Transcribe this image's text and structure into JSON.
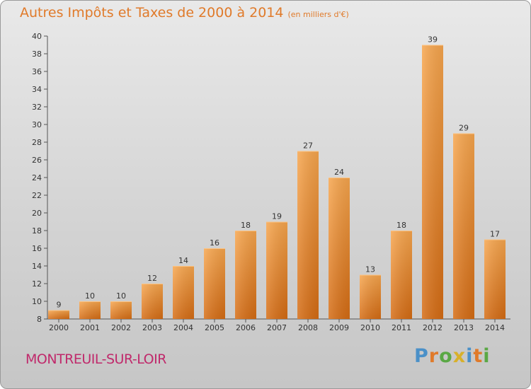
{
  "chart_data": {
    "type": "bar",
    "title": "Autres Impôts et Taxes de 2000 à 2014",
    "subtitle": "(en milliers d'€)",
    "categories": [
      "2000",
      "2001",
      "2002",
      "2003",
      "2004",
      "2005",
      "2006",
      "2007",
      "2008",
      "2009",
      "2010",
      "2011",
      "2012",
      "2013",
      "2014"
    ],
    "values": [
      9,
      10,
      10,
      12,
      14,
      16,
      18,
      19,
      27,
      24,
      13,
      18,
      39,
      29,
      17
    ],
    "ylim": [
      8,
      40
    ],
    "yticks": [
      8,
      10,
      12,
      14,
      16,
      18,
      20,
      22,
      24,
      26,
      28,
      30,
      32,
      34,
      36,
      38,
      40
    ],
    "grid": false,
    "bar_color": "#f08a2c"
  },
  "footer": {
    "commune": "MONTREUIL-SUR-LOIR",
    "brand": "Proxiti",
    "brand_letters": [
      {
        "ch": "P",
        "color": "#4a90c8"
      },
      {
        "ch": "r",
        "color": "#e07a2a"
      },
      {
        "ch": "o",
        "color": "#5aa845"
      },
      {
        "ch": "x",
        "color": "#d8b02a"
      },
      {
        "ch": "i",
        "color": "#4a90c8"
      },
      {
        "ch": "t",
        "color": "#e07a2a"
      },
      {
        "ch": "i",
        "color": "#5aa845"
      }
    ]
  }
}
